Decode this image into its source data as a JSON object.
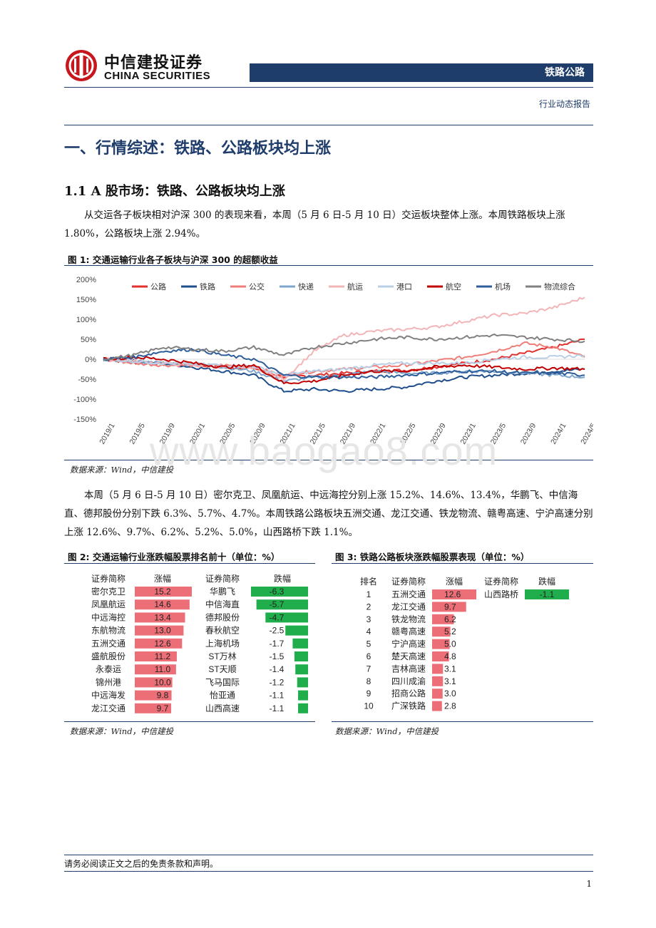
{
  "header": {
    "logo_cn": "中信建投证券",
    "logo_en": "CHINA SECURITIES",
    "section": "铁路公路",
    "report_type": "行业动态报告"
  },
  "h1": "一、行情综述：铁路、公路板块均上涨",
  "h2": "1.1 A 股市场：铁路、公路板块均上涨",
  "para1": "从交运各子板块相对沪深 300 的表现来看，本周（5 月 6 日-5 月 10 日）交运板块整体上涨。本周铁路板块上涨 1.80%，公路板块上涨 2.94%。",
  "fig1": {
    "title": "图 1:  交通运输行业各子板块与沪深 300 的超额收益",
    "source": "数据来源：Wind，中信建投"
  },
  "watermark": "www.baogao8.com",
  "para2": "本周（5 月 6 日-5 月 10 日）密尔克卫、凤凰航运、中远海控分别上涨 15.2%、14.6%、13.4%，华鹏飞、中信海直、德邦股份分别下跌 6.3%、5.7%、4.7%。本周铁路公路板块五洲交通、龙江交通、铁龙物流、赣粤高速、宁沪高速分别上涨 12.6%、9.7%、6.2%、5.2%、5.0%，山西路桥下跌 1.1%。",
  "fig2": {
    "title": "图 2:  交通运输行业涨跌幅股票排名前十（单位：%）",
    "headers": [
      "证券简称",
      "涨幅",
      "证券简称",
      "跌幅"
    ],
    "gainers": [
      {
        "name": "密尔克卫",
        "value": "15.2"
      },
      {
        "name": "凤凰航运",
        "value": "14.6"
      },
      {
        "name": "中远海控",
        "value": "13.4"
      },
      {
        "name": "东航物流",
        "value": "13.0"
      },
      {
        "name": "五洲交通",
        "value": "12.6"
      },
      {
        "name": "盛航股份",
        "value": "11.2"
      },
      {
        "name": "永泰运",
        "value": "11.0"
      },
      {
        "name": "锦州港",
        "value": "10.0"
      },
      {
        "name": "中远海发",
        "value": "9.8"
      },
      {
        "name": "龙江交通",
        "value": "9.7"
      }
    ],
    "losers": [
      {
        "name": "华鹏飞",
        "value": "-6.3"
      },
      {
        "name": "中信海直",
        "value": "-5.7"
      },
      {
        "name": "德邦股份",
        "value": "-4.7"
      },
      {
        "name": "春秋航空",
        "value": "-2.5"
      },
      {
        "name": "上海机场",
        "value": "-1.7"
      },
      {
        "name": "ST万林",
        "value": "-1.5"
      },
      {
        "name": "ST天顺",
        "value": "-1.4"
      },
      {
        "name": "飞马国际",
        "value": "-1.2"
      },
      {
        "name": "怡亚通",
        "value": "-1.1"
      },
      {
        "name": "山西高速",
        "value": "-1.1"
      }
    ],
    "source": "数据来源：Wind，中信建投"
  },
  "fig3": {
    "title": "图 3:  铁路公路板块涨跌幅股票表现（单位：%）",
    "headers": [
      "排名",
      "证券简称",
      "涨幅",
      "证券简称",
      "跌幅"
    ],
    "rows": [
      {
        "rank": "1",
        "name": "五洲交通",
        "value": "12.6"
      },
      {
        "rank": "2",
        "name": "龙江交通",
        "value": "9.7"
      },
      {
        "rank": "3",
        "name": "铁龙物流",
        "value": "6.2"
      },
      {
        "rank": "4",
        "name": "赣粤高速",
        "value": "5.2"
      },
      {
        "rank": "5",
        "name": "宁沪高速",
        "value": "5.0"
      },
      {
        "rank": "6",
        "name": "楚天高速",
        "value": "4.8"
      },
      {
        "rank": "7",
        "name": "吉林高速",
        "value": "3.1"
      },
      {
        "rank": "8",
        "name": "四川成渝",
        "value": "3.1"
      },
      {
        "rank": "9",
        "name": "招商公路",
        "value": "3.0"
      },
      {
        "rank": "10",
        "name": "广深铁路",
        "value": "2.8"
      }
    ],
    "loser": {
      "name": "山西路桥",
      "value": "-1.1"
    },
    "source": "数据来源：Wind，中信建投"
  },
  "footer": {
    "disclaimer": "请务必阅读正文之后的免责条款和声明。",
    "page": "1"
  },
  "chart_data": {
    "type": "line",
    "x": [
      "2019/1",
      "2019/5",
      "2019/9",
      "2020/1",
      "2020/5",
      "2020/9",
      "2021/1",
      "2021/5",
      "2021/9",
      "2022/1",
      "2022/5",
      "2022/9",
      "2023/1",
      "2023/5",
      "2023/9",
      "2024/1",
      "2024/5"
    ],
    "y_ticks": [
      "200%",
      "150%",
      "100%",
      "50%",
      "0%",
      "-50%",
      "-100%",
      "-150%"
    ],
    "ylim": [
      -150,
      200
    ],
    "legend_position": "top",
    "series": [
      {
        "name": "公路",
        "color": "#e0312f",
        "values": [
          0,
          -8,
          -12,
          -15,
          -20,
          -22,
          -45,
          -40,
          -35,
          -30,
          -28,
          -20,
          -10,
          0,
          15,
          30,
          50
        ]
      },
      {
        "name": "铁路",
        "color": "#1f4e8c",
        "values": [
          0,
          -5,
          -10,
          -20,
          -30,
          -40,
          -80,
          -75,
          -80,
          -75,
          -70,
          -55,
          -45,
          -40,
          -35,
          -30,
          -25
        ]
      },
      {
        "name": "公交",
        "color": "#ef7e7a",
        "values": [
          0,
          -10,
          -15,
          -15,
          -15,
          -20,
          -40,
          -30,
          -25,
          -20,
          -15,
          -5,
          5,
          20,
          40,
          30,
          5
        ]
      },
      {
        "name": "快递",
        "color": "#7ea6cc",
        "values": [
          0,
          -5,
          -10,
          -12,
          -20,
          -30,
          -55,
          -45,
          -40,
          -30,
          -35,
          -35,
          -30,
          -30,
          -35,
          -40,
          -45
        ]
      },
      {
        "name": "航运",
        "color": "#f2b5b8",
        "values": [
          0,
          -5,
          -10,
          -15,
          -20,
          -20,
          -50,
          20,
          60,
          70,
          75,
          80,
          95,
          110,
          115,
          130,
          155
        ]
      },
      {
        "name": "港口",
        "color": "#b9cfe6",
        "values": [
          0,
          -5,
          -10,
          -12,
          -15,
          -18,
          -40,
          -30,
          -25,
          -15,
          -10,
          -10,
          -10,
          0,
          5,
          5,
          10
        ]
      },
      {
        "name": "航空",
        "color": "#c00000",
        "values": [
          0,
          5,
          0,
          -10,
          -20,
          -15,
          -60,
          -55,
          -40,
          -30,
          -30,
          -20,
          -15,
          -20,
          -25,
          -22,
          -25
        ]
      },
      {
        "name": "机场",
        "color": "#2e5d9a",
        "values": [
          0,
          5,
          20,
          25,
          10,
          0,
          -40,
          -45,
          -45,
          -45,
          -40,
          -35,
          -30,
          -30,
          -35,
          -35,
          -40
        ]
      },
      {
        "name": "物流综合",
        "color": "#808080",
        "values": [
          0,
          10,
          30,
          25,
          20,
          30,
          10,
          30,
          40,
          50,
          55,
          50,
          55,
          60,
          55,
          50,
          45
        ]
      }
    ]
  }
}
